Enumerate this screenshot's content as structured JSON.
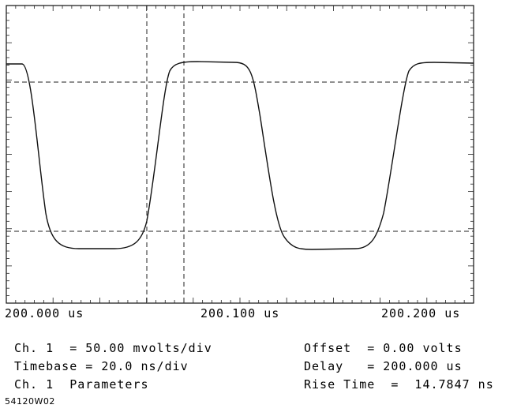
{
  "scope": {
    "time_labels": [
      "200.000 us",
      "200.100 us",
      "200.200 us"
    ]
  },
  "settings": {
    "ch1_scale": "Ch. 1  = 50.00 mvolts/div",
    "timebase": "Timebase = 20.0 ns/div",
    "ch1_params": "Ch. 1  Parameters",
    "offset": "Offset  = 0.00 volts",
    "delay": "Delay   = 200.000 us",
    "rise_time": "Rise Time  =  14.7847 ns"
  },
  "figure_id": "54120W02"
}
